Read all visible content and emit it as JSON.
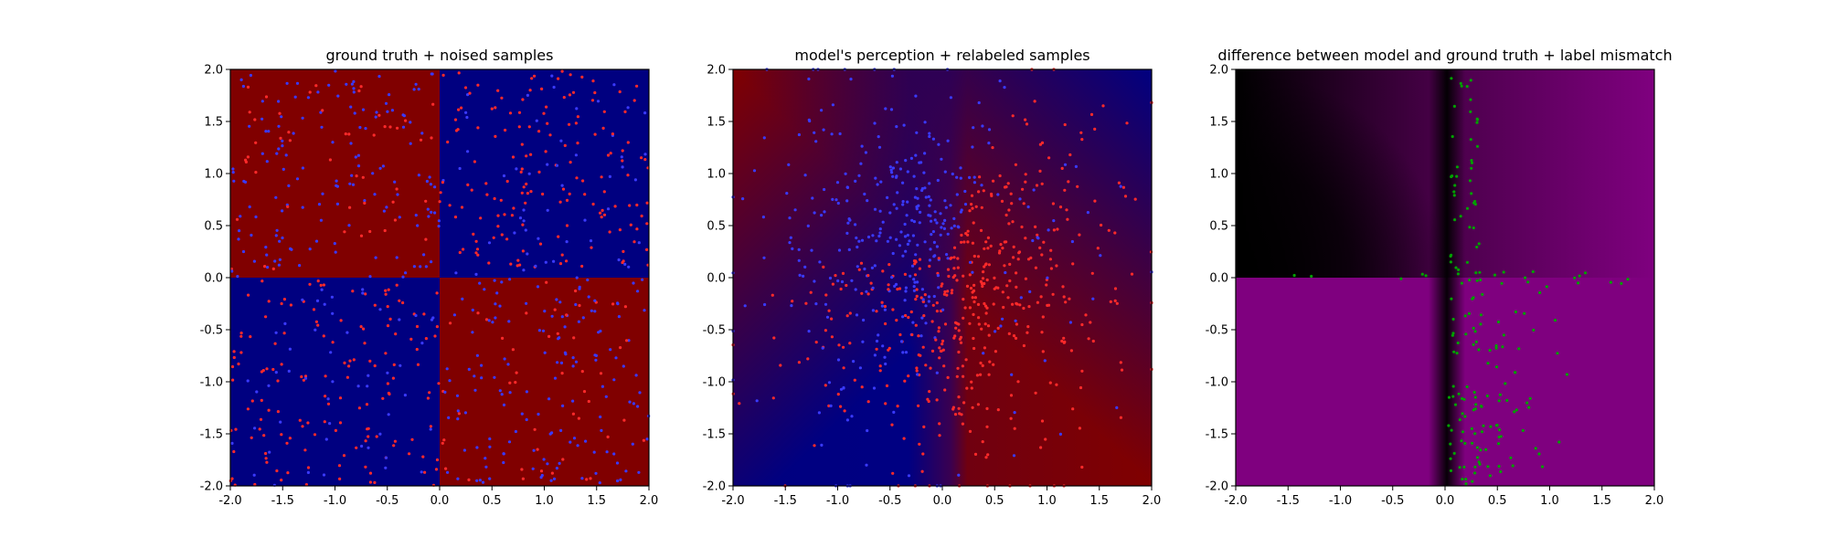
{
  "chart_data": [
    {
      "type": "scatter",
      "panel": "left",
      "title": "ground truth + noised samples",
      "xlim": [
        -2.0,
        2.0
      ],
      "ylim": [
        -2.0,
        2.0
      ],
      "xticks": [
        "-2.0",
        "-1.5",
        "-1.0",
        "-0.5",
        "0.0",
        "0.5",
        "1.0",
        "1.5",
        "2.0"
      ],
      "yticks": [
        "-2.0",
        "-1.5",
        "-1.0",
        "-0.5",
        "0.0",
        "0.5",
        "1.0",
        "1.5",
        "2.0"
      ],
      "background": "quadrant checkerboard: red where x*y<0, blue where x*y>0",
      "colors": {
        "class_red": "#800000",
        "class_blue": "#000080",
        "point_red": "#ff2a2a",
        "point_blue": "#3a3aff"
      },
      "series": [
        {
          "color": "red",
          "approx_points": 400,
          "x_range": [
            -2,
            2
          ],
          "y_range": [
            -2,
            2
          ]
        },
        {
          "color": "blue",
          "approx_points": 400,
          "x_range": [
            -2,
            2
          ],
          "y_range": [
            -2,
            2
          ]
        }
      ]
    },
    {
      "type": "scatter",
      "panel": "middle",
      "title": "model's perception + relabeled samples",
      "xlim": [
        -2.0,
        2.0
      ],
      "ylim": [
        -2.0,
        2.0
      ],
      "xticks": [
        "-2.0",
        "-1.5",
        "-1.0",
        "-0.5",
        "0.0",
        "0.5",
        "1.0",
        "1.5",
        "2.0"
      ],
      "yticks": [
        "-2.0",
        "-1.5",
        "-1.0",
        "-0.5",
        "0.0",
        "0.5",
        "1.0",
        "1.5",
        "2.0"
      ],
      "background": "smooth blue-to-red field; red upper-left and lower-right, blue left-center and upper-right",
      "colors": {
        "class_red": "#800000",
        "class_blue": "#000080",
        "point_red": "#ff2a2a",
        "point_blue": "#3a3aff"
      },
      "series": [
        {
          "color": "red",
          "approx_points": 450,
          "x_range": [
            -2,
            2
          ],
          "y_range": [
            -2,
            2
          ]
        },
        {
          "color": "blue",
          "approx_points": 350,
          "x_range": [
            -2,
            2
          ],
          "y_range": [
            -2,
            2
          ]
        }
      ]
    },
    {
      "type": "scatter",
      "panel": "right",
      "title": "difference between model and ground truth + label mismatch",
      "xlim": [
        -2.0,
        2.0
      ],
      "ylim": [
        -2.0,
        2.0
      ],
      "xticks": [
        "-2.0",
        "-1.5",
        "-1.0",
        "-0.5",
        "0.0",
        "0.5",
        "1.0",
        "1.5",
        "2.0"
      ],
      "yticks": [
        "-2.0",
        "-1.5",
        "-1.0",
        "-0.5",
        "0.0",
        "0.5",
        "1.0",
        "1.5",
        "2.0"
      ],
      "background": "magenta-to-black difference map; dark upper-left, dark vertical band near x=0",
      "colors": {
        "diff_high": "#7f007f",
        "diff_low": "#000000",
        "point_green": "#00a000"
      },
      "series": [
        {
          "color": "green",
          "approx_points": 180,
          "x_range": [
            -1.5,
            1.8
          ],
          "y_range": [
            -2,
            2
          ]
        }
      ]
    }
  ]
}
